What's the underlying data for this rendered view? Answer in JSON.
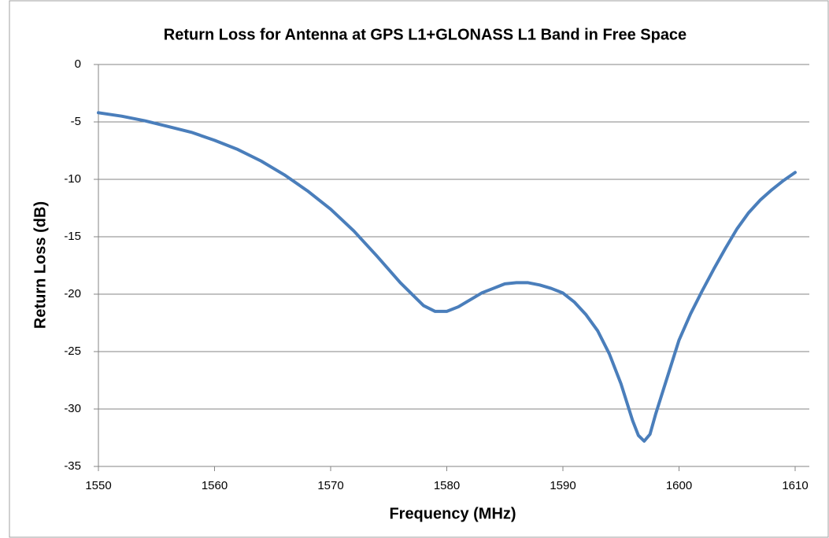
{
  "chart_data": {
    "type": "line",
    "title": "Return Loss for Antenna at GPS L1+GLONASS L1 Band in Free Space",
    "x_label": "Frequency  (MHz)",
    "y_label": "Return Loss (dB)",
    "xlim": [
      1550,
      1610
    ],
    "xticks": [
      1550,
      1560,
      1570,
      1580,
      1590,
      1600,
      1610
    ],
    "ylim": [
      -35,
      0
    ],
    "yticks": [
      -35,
      -30,
      -25,
      -20,
      -15,
      -10,
      -5,
      0
    ],
    "grid": true,
    "series": [
      {
        "name": "Return Loss",
        "color": "#4a7ebb",
        "x": [
          1550,
          1552,
          1554,
          1556,
          1558,
          1560,
          1562,
          1564,
          1566,
          1568,
          1570,
          1572,
          1574,
          1576,
          1578,
          1579,
          1580,
          1581,
          1582,
          1583,
          1584,
          1585,
          1586,
          1587,
          1588,
          1589,
          1590,
          1591,
          1592,
          1593,
          1594,
          1595,
          1596,
          1596.5,
          1597,
          1597.5,
          1598,
          1599,
          1600,
          1601,
          1602,
          1603,
          1604,
          1605,
          1606,
          1607,
          1608,
          1609,
          1610
        ],
        "values": [
          -4.2,
          -4.5,
          -4.9,
          -5.4,
          -5.9,
          -6.6,
          -7.4,
          -8.4,
          -9.6,
          -11.0,
          -12.6,
          -14.5,
          -16.7,
          -19.0,
          -21.0,
          -21.5,
          -21.5,
          -21.1,
          -20.5,
          -19.9,
          -19.5,
          -19.1,
          -19.0,
          -19.0,
          -19.2,
          -19.5,
          -19.9,
          -20.7,
          -21.8,
          -23.2,
          -25.2,
          -27.8,
          -31.0,
          -32.3,
          -32.8,
          -32.2,
          -30.4,
          -27.2,
          -24.0,
          -21.7,
          -19.7,
          -17.8,
          -16.0,
          -14.3,
          -12.9,
          -11.8,
          -10.9,
          -10.1,
          -9.4
        ]
      }
    ]
  }
}
